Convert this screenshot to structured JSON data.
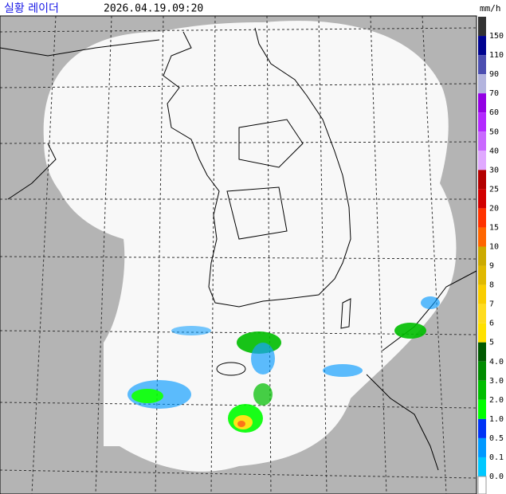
{
  "header": {
    "title": "실황 레이더",
    "timestamp": "2026.04.19.09:20",
    "unit": "mm/h"
  },
  "legend": {
    "items": [
      {
        "label": "150",
        "color": "#333333"
      },
      {
        "label": "110",
        "color": "#000390"
      },
      {
        "label": "90",
        "color": "#4c4eb1"
      },
      {
        "label": "70",
        "color": "#b3b4de"
      },
      {
        "label": "60",
        "color": "#9300e4"
      },
      {
        "label": "50",
        "color": "#b329ff"
      },
      {
        "label": "40",
        "color": "#c969ff"
      },
      {
        "label": "30",
        "color": "#e0a9ff"
      },
      {
        "label": "25",
        "color": "#b40000"
      },
      {
        "label": "20",
        "color": "#d20000"
      },
      {
        "label": "15",
        "color": "#ff3200"
      },
      {
        "label": "10",
        "color": "#ff6600"
      },
      {
        "label": "9",
        "color": "#ccaa00"
      },
      {
        "label": "8",
        "color": "#e0b900"
      },
      {
        "label": "7",
        "color": "#f9cd00"
      },
      {
        "label": "6",
        "color": "#ffdc1f"
      },
      {
        "label": "5",
        "color": "#ffe100"
      },
      {
        "label": "4.0",
        "color": "#005a00"
      },
      {
        "label": "3.0",
        "color": "#008c00"
      },
      {
        "label": "2.0",
        "color": "#00be00"
      },
      {
        "label": "1.0",
        "color": "#00ff00"
      },
      {
        "label": "0.5",
        "color": "#0033f5"
      },
      {
        "label": "0.1",
        "color": "#0099ff"
      },
      {
        "label": "0.0",
        "color": "#00c8ff"
      }
    ]
  }
}
